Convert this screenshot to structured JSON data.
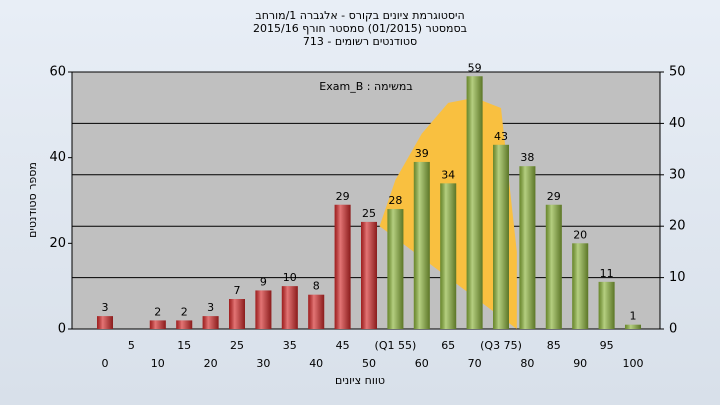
{
  "chart_data": {
    "type": "bar",
    "title": [
      "היסטוגרמת ציונים בקורס - אלגברה 1/מורחב",
      "בסמסטר (01/2015) סמסטר חורף 2015/16",
      "סטודנטים רשומים - 713"
    ],
    "annotation": "במשימה : Exam_B",
    "x_label": "טווח ציונים",
    "y_label": "מספר סטודנטים",
    "categories": [
      "0",
      "5",
      "10",
      "15",
      "20",
      "25",
      "30",
      "35",
      "40",
      "45",
      "50",
      "(Q1 55)",
      "60",
      "65",
      "70",
      "(Q3 75)",
      "80",
      "85",
      "90",
      "95",
      "100"
    ],
    "values": [
      3,
      null,
      2,
      2,
      3,
      7,
      9,
      10,
      8,
      29,
      25,
      28,
      39,
      34,
      59,
      43,
      38,
      29,
      20,
      11,
      1
    ],
    "colors": [
      "#d42a2a",
      "#d42a2a",
      "#d42a2a",
      "#d42a2a",
      "#d42a2a",
      "#d42a2a",
      "#d42a2a",
      "#d42a2a",
      "#d42a2a",
      "#d42a2a",
      "#d42a2a",
      "#8db53c",
      "#8db53c",
      "#8db53c",
      "#8db53c",
      "#8db53c",
      "#8db53c",
      "#8db53c",
      "#8db53c",
      "#8db53c",
      "#8db53c"
    ],
    "area": {
      "axis": "y2",
      "color": "#f9c040",
      "x": [
        52,
        55,
        60,
        65,
        70,
        75,
        78,
        78
      ],
      "values": [
        20,
        29,
        38,
        44,
        45,
        43,
        15,
        0
      ]
    },
    "xlim": [
      0,
      100
    ],
    "ylim": [
      0,
      60
    ],
    "yticks": [
      0,
      20,
      40,
      60
    ],
    "y2lim": [
      0,
      50
    ],
    "y2ticks": [
      0,
      10,
      20,
      30,
      40,
      50
    ],
    "grid": true
  }
}
